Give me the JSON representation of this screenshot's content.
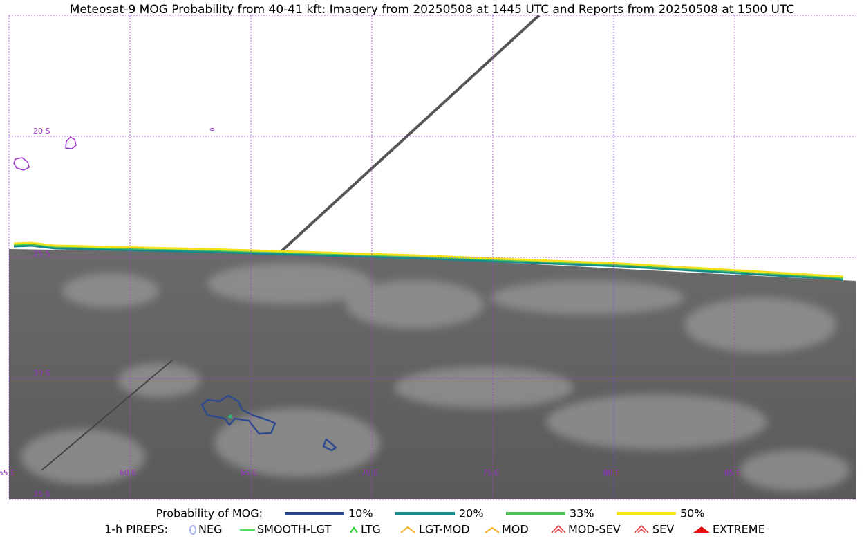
{
  "title": "Meteosat-9 MOG Probability from 40-41 kft: Imagery from 20250508 at 1445 UTC and Reports from 20250508 at 1500 UTC",
  "lat_labels": [
    "20 S",
    "25 S",
    "30 S",
    "35 S"
  ],
  "lon_labels": [
    "55 E",
    "60 E",
    "65 E",
    "70 E",
    "75 E",
    "80 E",
    "85 E"
  ],
  "legend": {
    "probability_label": "Probability of MOG:",
    "probability_items": [
      {
        "label": "10%",
        "color": "#2f4a8e"
      },
      {
        "label": "20%",
        "color": "#16898a"
      },
      {
        "label": "33%",
        "color": "#4cc45a"
      },
      {
        "label": "50%",
        "color": "#f5e11a"
      }
    ],
    "pireps_label": "1-h PIREPS:",
    "pirep_items": [
      "NEG",
      "SMOOTH-LGT",
      "LTG",
      "LGT-MOD",
      "MOD",
      "MOD-SEV",
      "SEV",
      "EXTREME"
    ]
  }
}
